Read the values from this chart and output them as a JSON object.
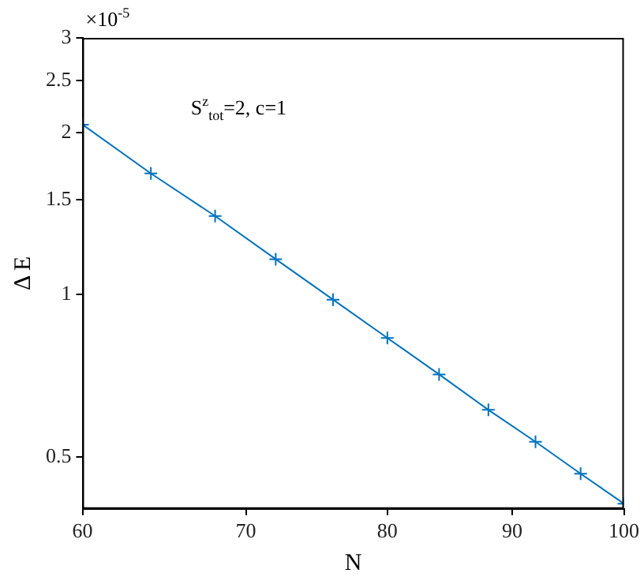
{
  "chart_data": {
    "type": "line",
    "xlabel": "N",
    "ylabel": "Δ E",
    "annotations": [
      "S$^{z}$$_{tot}$=2, c=1",
      "×10$^{-5}$"
    ],
    "x": [
      60,
      64,
      68,
      72,
      76,
      80,
      84,
      88,
      92,
      96,
      100
    ],
    "series": [
      {
        "color": "#0072bd",
        "values": [
          2.07,
          1.68,
          1.4,
          1.164,
          0.979,
          0.831,
          0.711,
          0.611,
          0.533,
          0.465,
          0.409
        ]
      }
    ],
    "log": "xy",
    "marker": "cross",
    "line_style": "solid",
    "xlim": [
      60,
      100
    ],
    "xticks": [
      60,
      70,
      80,
      90,
      100
    ],
    "ylim": [
      0.4,
      3
    ],
    "yticks": [
      0.5,
      1,
      1.5,
      2,
      2.5,
      3
    ]
  }
}
